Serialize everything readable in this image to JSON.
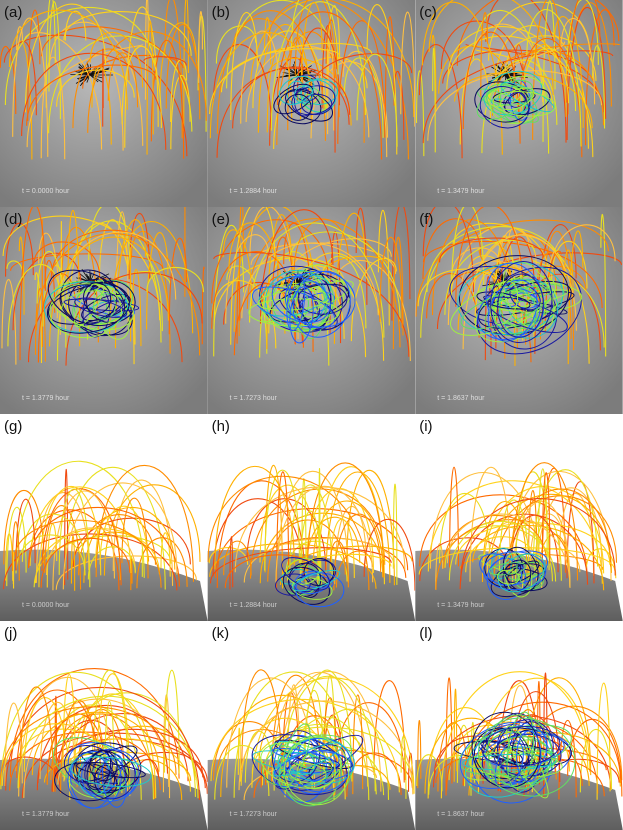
{
  "panels": [
    {
      "label": "(a)",
      "time": "t = 0.0000 hour"
    },
    {
      "label": "(b)",
      "time": "t = 1.2884 hour"
    },
    {
      "label": "(c)",
      "time": "t = 1.3479 hour"
    },
    {
      "label": "(d)",
      "time": "t = 1.3779 hour"
    },
    {
      "label": "(e)",
      "time": "t = 1.7273 hour"
    },
    {
      "label": "(f)",
      "time": "t = 1.8637 hour"
    },
    {
      "label": "(g)",
      "time": "t = 0.0000 hour"
    },
    {
      "label": "(h)",
      "time": "t = 1.2884 hour"
    },
    {
      "label": "(i)",
      "time": "t = 1.3479 hour"
    },
    {
      "label": "(j)",
      "time": "t = 1.3779 hour"
    },
    {
      "label": "(k)",
      "time": "t = 1.7273 hour"
    },
    {
      "label": "(l)",
      "time": "t = 1.8637 hour"
    }
  ]
}
